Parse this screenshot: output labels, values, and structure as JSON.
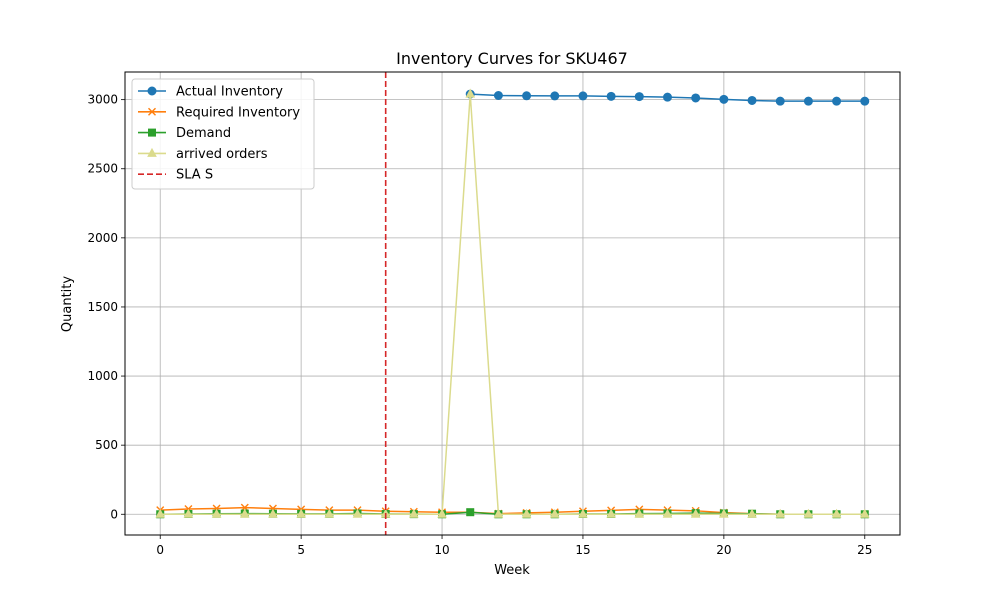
{
  "chart_data": {
    "type": "line",
    "title": "Inventory Curves for SKU467",
    "xlabel": "Week",
    "ylabel": "Quantity",
    "xlim": [
      -1.25,
      26.25
    ],
    "ylim": [
      -150,
      3200
    ],
    "xticks": [
      0,
      5,
      10,
      15,
      20,
      25
    ],
    "yticks": [
      0,
      500,
      1000,
      1500,
      2000,
      2500,
      3000
    ],
    "grid": true,
    "legend_position": "top-left",
    "x": [
      0,
      1,
      2,
      3,
      4,
      5,
      6,
      7,
      8,
      9,
      10,
      11,
      12,
      13,
      14,
      15,
      16,
      17,
      18,
      19,
      20,
      21,
      22,
      23,
      24,
      25
    ],
    "series": [
      {
        "name": "Actual Inventory",
        "color": "#1f77b4",
        "marker": "circle",
        "line_style": "solid",
        "x": [
          11,
          12,
          13,
          14,
          15,
          16,
          17,
          18,
          19,
          20,
          21,
          22,
          23,
          24,
          25
        ],
        "values": [
          3040,
          3030,
          3028,
          3027,
          3027,
          3024,
          3022,
          3018,
          3012,
          3002,
          2994,
          2989,
          2989,
          2989,
          2989
        ]
      },
      {
        "name": "Required Inventory",
        "color": "#ff7f0e",
        "marker": "x",
        "line_style": "solid",
        "x": [
          0,
          1,
          2,
          3,
          4,
          5,
          6,
          7,
          8,
          9,
          10,
          11,
          12,
          13,
          14,
          15,
          16,
          17,
          18,
          19,
          20,
          21,
          22,
          23,
          24,
          25
        ],
        "values": [
          30,
          38,
          42,
          48,
          42,
          35,
          30,
          30,
          22,
          18,
          15,
          15,
          5,
          10,
          15,
          22,
          28,
          35,
          30,
          25,
          12,
          5,
          0,
          0,
          0,
          0
        ]
      },
      {
        "name": "Demand",
        "color": "#2ca02c",
        "marker": "square",
        "line_style": "solid",
        "x": [
          0,
          1,
          2,
          3,
          4,
          5,
          6,
          7,
          8,
          9,
          10,
          11,
          12,
          13,
          14,
          15,
          16,
          17,
          18,
          19,
          20,
          21,
          22,
          23,
          24,
          25
        ],
        "values": [
          0,
          2,
          4,
          5,
          4,
          3,
          3,
          6,
          2,
          1,
          0,
          15,
          0,
          0,
          0,
          2,
          2,
          5,
          6,
          8,
          6,
          4,
          0,
          0,
          0,
          0
        ]
      },
      {
        "name": "arrived orders",
        "color": "#dbdb8d",
        "marker": "triangle",
        "line_style": "solid",
        "x": [
          0,
          1,
          2,
          3,
          4,
          5,
          6,
          7,
          8,
          9,
          10,
          11,
          12,
          13,
          14,
          15,
          16,
          17,
          18,
          19,
          20,
          21,
          22,
          23,
          24,
          25
        ],
        "values": [
          0,
          0,
          0,
          0,
          0,
          0,
          0,
          0,
          0,
          0,
          0,
          3040,
          0,
          0,
          0,
          0,
          0,
          0,
          0,
          0,
          0,
          0,
          0,
          0,
          0,
          0
        ]
      }
    ],
    "vlines": [
      {
        "name": "SLA S",
        "x": 8,
        "color": "#d62728",
        "line_style": "dashed"
      }
    ]
  }
}
